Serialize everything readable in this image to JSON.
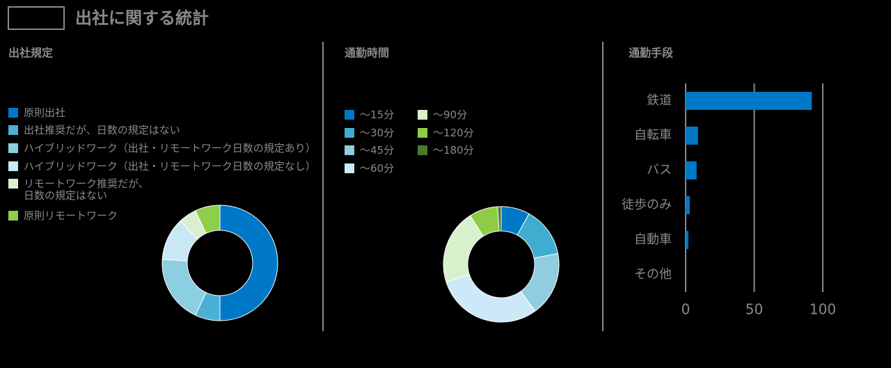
{
  "title": "出社に関する統計",
  "chart_data": [
    {
      "type": "donut",
      "title": "出社規定",
      "categories": [
        "原則出社",
        "出社推奨だが、日数の規定はない",
        "ハイブリッドワーク（出社・リモートワーク日数の規定あり）",
        "ハイブリッドワーク（出社・リモートワーク日数の規定なし）",
        "リモートワーク推奨だが、\n日数の規定はない",
        "原則リモートワーク"
      ],
      "values": [
        50,
        7,
        19,
        12,
        5,
        7
      ],
      "colors": [
        "#0078c8",
        "#4ab0d4",
        "#8ccfe0",
        "#c9e8f6",
        "#d9efd0",
        "#8fce4a"
      ]
    },
    {
      "type": "donut",
      "title": "通勤時間",
      "categories": [
        "～15分",
        "～30分",
        "～45分",
        "～60分",
        "～90分",
        "～120分",
        "～180分"
      ],
      "values": [
        8,
        14,
        18,
        30,
        21,
        8,
        1
      ],
      "colors": [
        "#0078c8",
        "#3eadd0",
        "#90cde0",
        "#cde9f7",
        "#d8f0cc",
        "#8ecc48",
        "#4d7a2a"
      ]
    },
    {
      "type": "hbar",
      "title": "通勤手段",
      "categories": [
        "鉄道",
        "自転車",
        "バス",
        "徒歩のみ",
        "自動車",
        "その他"
      ],
      "values": [
        92,
        9,
        8,
        3,
        2,
        0
      ],
      "color": "#0078c8",
      "xlim": [
        0,
        100
      ],
      "xticks": [
        0,
        50,
        100
      ],
      "grid": true
    }
  ]
}
